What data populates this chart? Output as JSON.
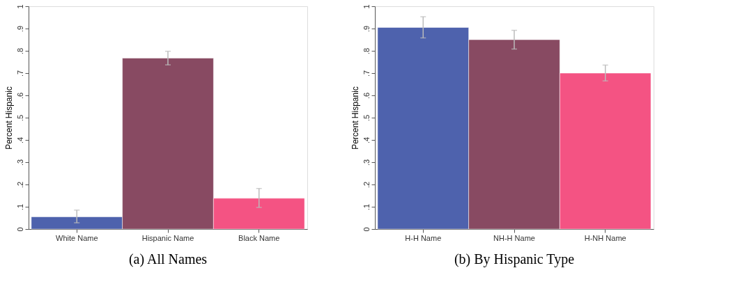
{
  "chart_data": [
    {
      "type": "bar",
      "title": "(a) All Names",
      "ylabel": "Percent Hispanic",
      "categories": [
        "White Name",
        "Hispanic Name",
        "Black Name"
      ],
      "values": [
        0.055,
        0.767,
        0.138
      ],
      "colors": [
        "#4e62ad",
        "#884a62",
        "#f45383"
      ],
      "errors": [
        [
          0.028,
          0.085
        ],
        [
          0.737,
          0.798
        ],
        [
          0.097,
          0.182
        ]
      ],
      "ylim": [
        0,
        1
      ],
      "yticks": [
        0,
        {
          "value": 0.1,
          "label": ".1"
        },
        {
          "value": 0.2,
          "label": ".2"
        },
        {
          "value": 0.3,
          "label": ".3"
        },
        {
          "value": 0.4,
          "label": ".4"
        },
        {
          "value": 0.5,
          "label": ".5"
        },
        {
          "value": 0.6,
          "label": ".6"
        },
        {
          "value": 0.7,
          "label": ".7"
        },
        {
          "value": 0.8,
          "label": ".8"
        },
        {
          "value": 0.9,
          "label": ".9"
        },
        1
      ],
      "grid": false,
      "legend": false
    },
    {
      "type": "bar",
      "title": "(b) By Hispanic Type",
      "ylabel": "Percent Hispanic",
      "categories": [
        "H-H Name",
        "NH-H Name",
        "H-NH Name"
      ],
      "values": [
        0.905,
        0.85,
        0.7
      ],
      "colors": [
        "#4e62ad",
        "#884a62",
        "#f45383"
      ],
      "errors": [
        [
          0.858,
          0.953
        ],
        [
          0.808,
          0.892
        ],
        [
          0.665,
          0.736
        ]
      ],
      "ylim": [
        0,
        1
      ],
      "yticks": [
        0,
        {
          "value": 0.1,
          "label": ".1"
        },
        {
          "value": 0.2,
          "label": ".2"
        },
        {
          "value": 0.3,
          "label": ".3"
        },
        {
          "value": 0.4,
          "label": ".4"
        },
        {
          "value": 0.5,
          "label": ".5"
        },
        {
          "value": 0.6,
          "label": ".6"
        },
        {
          "value": 0.7,
          "label": ".7"
        },
        {
          "value": 0.8,
          "label": ".8"
        },
        {
          "value": 0.9,
          "label": ".9"
        },
        1
      ],
      "grid": false,
      "legend": false
    }
  ]
}
